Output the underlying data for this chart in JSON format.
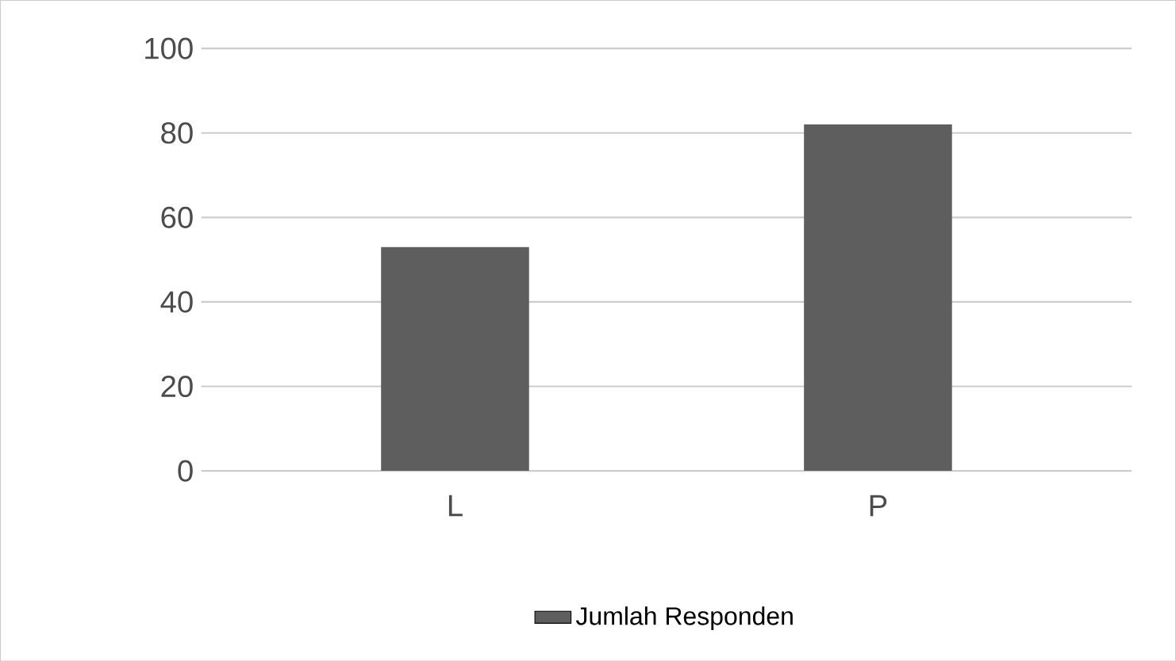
{
  "chart_data": {
    "type": "bar",
    "categories": [
      "L",
      "P"
    ],
    "series": [
      {
        "name": "Jumlah Responden",
        "color": "#5e5e5e",
        "values": [
          53,
          82
        ]
      }
    ],
    "ylim": [
      0,
      100
    ],
    "yticks": [
      0,
      20,
      40,
      60,
      80,
      100
    ],
    "grid": "y",
    "legend": "bottom"
  }
}
